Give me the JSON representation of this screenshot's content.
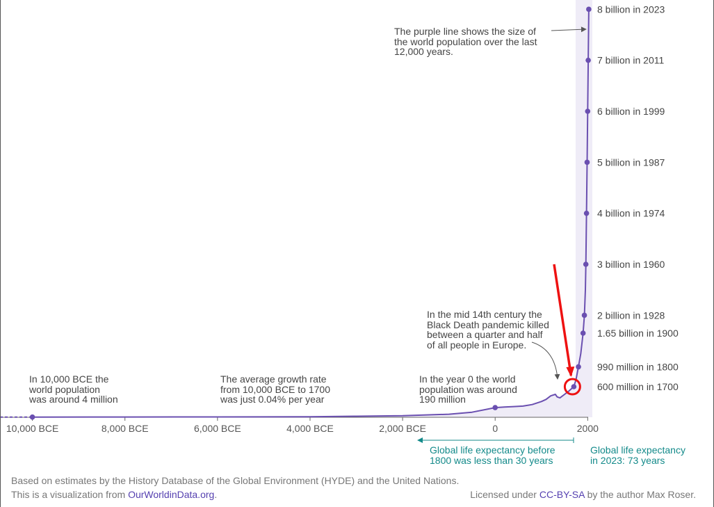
{
  "chart_data": {
    "type": "line",
    "title": "",
    "xlabel": "",
    "ylabel": "",
    "x_ticks": [
      "10,000 BCE",
      "8,000 BCE",
      "6,000 BCE",
      "4,000 BCE",
      "2,000 BCE",
      "0",
      "2000"
    ],
    "x_tick_values": [
      -10000,
      -8000,
      -6000,
      -4000,
      -2000,
      0,
      2000
    ],
    "xlim": [
      -10700,
      2100
    ],
    "ylim": [
      0,
      8100000000
    ],
    "grid": false,
    "line_color": "#6a4fb0",
    "fill_color": "#efecf7",
    "series": [
      {
        "x": [
          -10700,
          -10000,
          -8000,
          -6000,
          -4000,
          -3000,
          -2000,
          -1000,
          -500,
          0,
          200,
          400,
          600,
          800,
          1000,
          1100,
          1200,
          1300,
          1340,
          1400,
          1500,
          1600,
          1650,
          1700,
          1750,
          1800,
          1850,
          1900,
          1928,
          1950,
          1960,
          1974,
          1987,
          1999,
          2011,
          2023
        ],
        "y": [
          4000000,
          4000000,
          5000000,
          7000000,
          10000000,
          20000000,
          30000000,
          60000000,
          100000000,
          190000000,
          200000000,
          210000000,
          220000000,
          250000000,
          310000000,
          350000000,
          420000000,
          450000000,
          400000000,
          380000000,
          450000000,
          520000000,
          560000000,
          600000000,
          750000000,
          990000000,
          1250000000,
          1650000000,
          2000000000,
          2500000000,
          3000000000,
          4000000000,
          5000000000,
          6000000000,
          7000000000,
          8000000000
        ]
      }
    ],
    "milestones": [
      {
        "x": -10000,
        "y": 4000000
      },
      {
        "x": 0,
        "y": 190000000
      },
      {
        "x": 1700,
        "y": 600000000,
        "label": "600 million in 1700"
      },
      {
        "x": 1800,
        "y": 990000000,
        "label": "990 million in 1800"
      },
      {
        "x": 1900,
        "y": 1650000000,
        "label": "1.65 billion in 1900"
      },
      {
        "x": 1928,
        "y": 2000000000,
        "label": "2 billion in 1928"
      },
      {
        "x": 1960,
        "y": 3000000000,
        "label": "3 billion in 1960"
      },
      {
        "x": 1974,
        "y": 4000000000,
        "label": "4 billion in 1974"
      },
      {
        "x": 1987,
        "y": 5000000000,
        "label": "5 billion in 1987"
      },
      {
        "x": 1999,
        "y": 6000000000,
        "label": "6 billion in 1999"
      },
      {
        "x": 2011,
        "y": 7000000000,
        "label": "7 billion in 2011"
      },
      {
        "x": 2023,
        "y": 8000000000,
        "label": "8 billion in 2023"
      }
    ],
    "annotations": {
      "bce_10000": "In 10,000 BCE the\nworld population\nwas around 4 million",
      "growth_rate": "The average growth rate\nfrom 10,000 BCE to 1700\nwas just 0.04% per year",
      "year_zero": "In the year 0 the world\npopulation was around\n190 million",
      "black_death": "In the mid 14th century the\nBlack Death pandemic killed\nbetween a quarter and half\nof all people in Europe.",
      "purple_line": "The purple line shows the size of\nthe world population over the last\n12,000 years.",
      "life_exp_before": "Global life expectancy before\n1800 was less than 30 years",
      "life_exp_2023": "Global life expectancy\nin 2023: 73 years"
    },
    "highlight": {
      "x": 1700,
      "color": "#ee1111",
      "note": "red arrow and circle marking the 1700 point"
    }
  },
  "footer": {
    "source": "Based on estimates by the History Database of the Global Environment (HYDE) and the United Nations.",
    "viz_prefix": "This is a visualization from ",
    "viz_link": "OurWorldinData.org",
    "viz_suffix": ".",
    "license_prefix": "Licensed under ",
    "license_link": "CC-BY-SA",
    "license_suffix": " by the author Max Roser."
  },
  "colors": {
    "accent": "#6a4fb0",
    "teal": "#138a8a",
    "red": "#ee1111",
    "axis": "#666666",
    "text": "#444444",
    "footer_text": "#777777",
    "link": "#5540b0"
  }
}
